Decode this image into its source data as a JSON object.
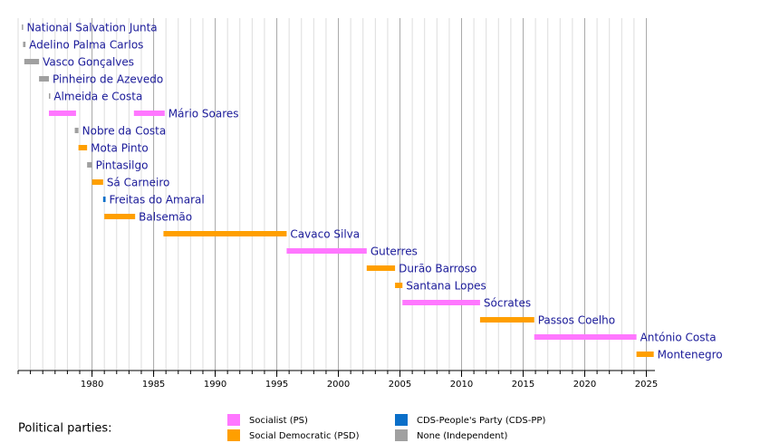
{
  "chart_data": {
    "type": "timeline",
    "legend_title": "Political parties:",
    "series": [
      {
        "name": "Socialist (PS)",
        "color": "#ff77ff"
      },
      {
        "name": "Social Democratic (PSD)",
        "color": "#ff9f00"
      },
      {
        "name": "CDS-People's Party (CDS-PP)",
        "color": "#0a6fc9"
      },
      {
        "name": "None (Independent)",
        "color": "#a0a0a0"
      }
    ],
    "rows": [
      {
        "name": "National Salvation Junta",
        "terms": [
          {
            "start": 1974.3,
            "end": 1974.4,
            "series": 3
          }
        ]
      },
      {
        "name": "Adelino Palma Carlos",
        "terms": [
          {
            "start": 1974.4,
            "end": 1974.6,
            "series": 3
          }
        ]
      },
      {
        "name": "Vasco Gonçalves",
        "terms": [
          {
            "start": 1974.5,
            "end": 1975.7,
            "series": 3
          }
        ]
      },
      {
        "name": "Pinheiro de Azevedo",
        "terms": [
          {
            "start": 1975.7,
            "end": 1976.5,
            "series": 3
          }
        ]
      },
      {
        "name": "Almeida e Costa",
        "terms": [
          {
            "start": 1976.5,
            "end": 1976.6,
            "series": 3
          }
        ]
      },
      {
        "name": "Mário Soares",
        "terms": [
          {
            "start": 1976.5,
            "end": 1978.7,
            "series": 0
          },
          {
            "start": 1983.4,
            "end": 1985.9,
            "series": 0
          }
        ]
      },
      {
        "name": "Nobre da Costa",
        "terms": [
          {
            "start": 1978.6,
            "end": 1978.9,
            "series": 3
          }
        ]
      },
      {
        "name": "Mota Pinto",
        "terms": [
          {
            "start": 1978.9,
            "end": 1979.6,
            "series": 1
          }
        ]
      },
      {
        "name": "Pintasilgo",
        "terms": [
          {
            "start": 1979.6,
            "end": 1980.0,
            "series": 3
          }
        ]
      },
      {
        "name": "Sá Carneiro",
        "terms": [
          {
            "start": 1980.0,
            "end": 1980.9,
            "series": 1
          }
        ]
      },
      {
        "name": "Freitas do Amaral",
        "terms": [
          {
            "start": 1980.9,
            "end": 1981.1,
            "series": 2
          }
        ]
      },
      {
        "name": "Balsemão",
        "terms": [
          {
            "start": 1981.0,
            "end": 1983.5,
            "series": 1
          }
        ]
      },
      {
        "name": "Cavaco Silva",
        "terms": [
          {
            "start": 1985.8,
            "end": 1995.8,
            "series": 1
          }
        ]
      },
      {
        "name": "Guterres",
        "terms": [
          {
            "start": 1995.8,
            "end": 2002.3,
            "series": 0
          }
        ]
      },
      {
        "name": "Durão Barroso",
        "terms": [
          {
            "start": 2002.3,
            "end": 2004.6,
            "series": 1
          }
        ]
      },
      {
        "name": "Santana Lopes",
        "terms": [
          {
            "start": 2004.6,
            "end": 2005.2,
            "series": 1
          }
        ]
      },
      {
        "name": "Sócrates",
        "terms": [
          {
            "start": 2005.2,
            "end": 2011.5,
            "series": 0
          }
        ]
      },
      {
        "name": "Passos Coelho",
        "terms": [
          {
            "start": 2011.5,
            "end": 2015.9,
            "series": 1
          }
        ]
      },
      {
        "name": "António Costa",
        "terms": [
          {
            "start": 2015.9,
            "end": 2024.2,
            "series": 0
          }
        ]
      },
      {
        "name": "Montenegro",
        "terms": [
          {
            "start": 2024.2,
            "end": 2025.6,
            "series": 1
          }
        ]
      }
    ],
    "xlim": [
      1974,
      2025.7
    ],
    "xticks": [
      1980,
      1985,
      1990,
      1995,
      2000,
      2005,
      2010,
      2015,
      2020,
      2025
    ],
    "minor_grid": true,
    "grid": true
  }
}
